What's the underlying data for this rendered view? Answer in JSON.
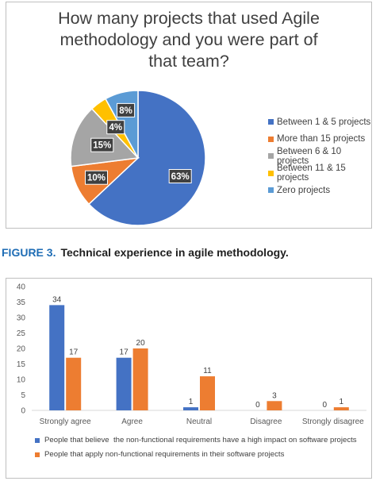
{
  "colors": {
    "blue": "#4472c4",
    "orange": "#ed7d31",
    "gray": "#a5a5a5",
    "yellow": "#ffc000",
    "lightblue": "#5b9bd5",
    "caption_accent": "#1f6db5"
  },
  "pie_title_lines": [
    "How many projects that used Agile",
    "methodology and you were part of",
    "that team?"
  ],
  "caption": {
    "figure_label": "FIGURE 3.",
    "text": "Technical experience in agile methodology."
  },
  "chart_data": [
    {
      "type": "pie",
      "title": "How many projects that used Agile methodology and you were part of that team?",
      "slices": [
        {
          "label": "Between 1 & 5 projects",
          "value": 63,
          "value_label": "63%",
          "color": "#4472c4"
        },
        {
          "label": "More than 15 projects",
          "value": 10,
          "value_label": "10%",
          "color": "#ed7d31"
        },
        {
          "label": "Between 6 & 10 projects",
          "value": 15,
          "value_label": "15%",
          "color": "#a5a5a5"
        },
        {
          "label": "Between 11 & 15 projects",
          "value": 4,
          "value_label": "4%",
          "color": "#ffc000"
        },
        {
          "label": "Zero projects",
          "value": 8,
          "value_label": "8%",
          "color": "#5b9bd5"
        }
      ],
      "legend_position": "right"
    },
    {
      "type": "bar",
      "categories": [
        "Strongly agree",
        "Agree",
        "Neutral",
        "Disagree",
        "Strongly disagree"
      ],
      "series": [
        {
          "name": "People that believe  the non-functional requirements have a high impact on software projects",
          "values": [
            34,
            17,
            1,
            0,
            0
          ],
          "color": "#4472c4"
        },
        {
          "name": "People that apply non-functional requirements in their software projects",
          "values": [
            17,
            20,
            11,
            3,
            1
          ],
          "color": "#ed7d31"
        }
      ],
      "ylim": [
        0,
        40
      ],
      "yticks": [
        "0",
        "5",
        "10",
        "15",
        "20",
        "25",
        "30",
        "35",
        "40"
      ],
      "grid": false,
      "legend_position": "bottom"
    }
  ]
}
